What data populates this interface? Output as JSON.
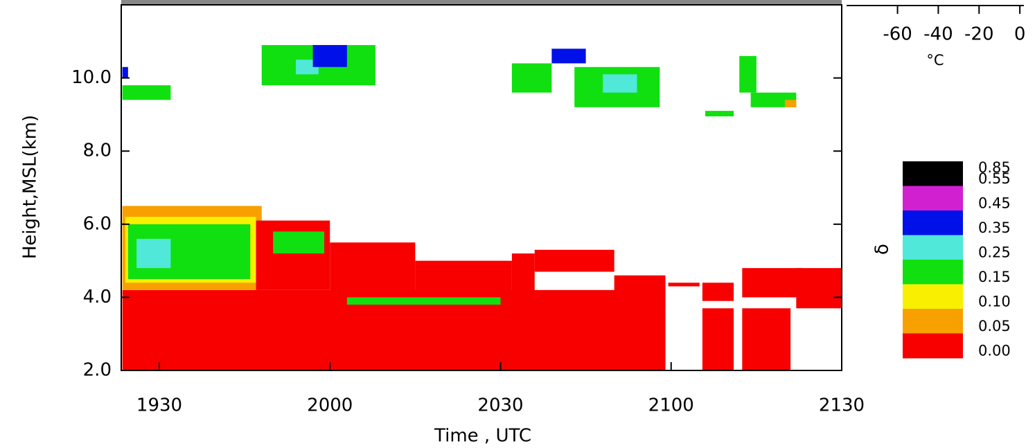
{
  "chart_data": {
    "type": "heatmap",
    "xlabel": "Time , UTC",
    "ylabel": "Height,MSL(km)",
    "xlim": [
      1163.3,
      1290
    ],
    "xticks": [
      {
        "value": 1170,
        "label": "1930"
      },
      {
        "value": 1200,
        "label": "2000"
      },
      {
        "value": 1230,
        "label": "2030"
      },
      {
        "value": 1260,
        "label": "2100"
      },
      {
        "value": 1290,
        "label": "2130"
      }
    ],
    "ylim": [
      2,
      12
    ],
    "yticks": [
      {
        "value": 2,
        "label": "2.0"
      },
      {
        "value": 4,
        "label": "4.0"
      },
      {
        "value": 6,
        "label": "6.0"
      },
      {
        "value": 8,
        "label": "8.0"
      },
      {
        "value": 10,
        "label": "10.0"
      }
    ],
    "regions": [
      {
        "x": [
          1163.5,
          1259
        ],
        "y": [
          2.0,
          4.2
        ],
        "value": 0.02
      },
      {
        "x": [
          1163.5,
          1188
        ],
        "y": [
          4.2,
          6.5
        ],
        "value": 0.07
      },
      {
        "x": [
          1164,
          1187
        ],
        "y": [
          4.4,
          6.2
        ],
        "value": 0.12
      },
      {
        "x": [
          1164.5,
          1186
        ],
        "y": [
          4.5,
          6.0
        ],
        "value": 0.2
      },
      {
        "x": [
          1166,
          1172
        ],
        "y": [
          4.8,
          5.6
        ],
        "value": 0.28
      },
      {
        "x": [
          1187,
          1200
        ],
        "y": [
          4.2,
          6.1
        ],
        "value": 0.02
      },
      {
        "x": [
          1190,
          1199
        ],
        "y": [
          5.2,
          5.8
        ],
        "value": 0.2
      },
      {
        "x": [
          1200,
          1215
        ],
        "y": [
          4.0,
          5.5
        ],
        "value": 0.02
      },
      {
        "x": [
          1215,
          1232
        ],
        "y": [
          3.9,
          5.0
        ],
        "value": 0.02
      },
      {
        "x": [
          1232,
          1236
        ],
        "y": [
          3.7,
          5.2
        ],
        "value": 0.02
      },
      {
        "x": [
          1236,
          1250
        ],
        "y": [
          4.7,
          5.3
        ],
        "value": 0.02
      },
      {
        "x": [
          1250,
          1259
        ],
        "y": [
          3.7,
          4.6
        ],
        "value": 0.02
      },
      {
        "x": [
          1203,
          1230
        ],
        "y": [
          3.8,
          4.0
        ],
        "value": 0.18
      },
      {
        "x": [
          1259.5,
          1265
        ],
        "y": [
          4.3,
          4.4
        ],
        "value": 0.02
      },
      {
        "x": [
          1265.5,
          1271
        ],
        "y": [
          2.0,
          3.7
        ],
        "value": 0.02
      },
      {
        "x": [
          1265.5,
          1271
        ],
        "y": [
          3.9,
          4.4
        ],
        "value": 0.02
      },
      {
        "x": [
          1272.5,
          1281
        ],
        "y": [
          2.0,
          3.7
        ],
        "value": 0.02
      },
      {
        "x": [
          1272.5,
          1283
        ],
        "y": [
          4.0,
          4.8
        ],
        "value": 0.02
      },
      {
        "x": [
          1282,
          1290
        ],
        "y": [
          3.7,
          4.8
        ],
        "value": 0.02
      },
      {
        "x": [
          1163.5,
          1172
        ],
        "y": [
          9.4,
          9.8
        ],
        "value": 0.2
      },
      {
        "x": [
          1163.5,
          1164.5
        ],
        "y": [
          10.0,
          10.3
        ],
        "value": 0.38
      },
      {
        "x": [
          1188,
          1208
        ],
        "y": [
          9.8,
          10.9
        ],
        "value": 0.2
      },
      {
        "x": [
          1194,
          1198
        ],
        "y": [
          10.1,
          10.5
        ],
        "value": 0.28
      },
      {
        "x": [
          1197,
          1203
        ],
        "y": [
          10.3,
          10.9
        ],
        "value": 0.38
      },
      {
        "x": [
          1232,
          1239
        ],
        "y": [
          9.6,
          10.4
        ],
        "value": 0.18
      },
      {
        "x": [
          1239,
          1245
        ],
        "y": [
          10.4,
          10.8
        ],
        "value": 0.38
      },
      {
        "x": [
          1243,
          1258
        ],
        "y": [
          9.2,
          10.3
        ],
        "value": 0.2
      },
      {
        "x": [
          1248,
          1254
        ],
        "y": [
          9.6,
          10.1
        ],
        "value": 0.3
      },
      {
        "x": [
          1266,
          1271
        ],
        "y": [
          8.95,
          9.1
        ],
        "value": 0.2
      },
      {
        "x": [
          1272,
          1275
        ],
        "y": [
          9.6,
          10.6
        ],
        "value": 0.2
      },
      {
        "x": [
          1274,
          1282
        ],
        "y": [
          9.2,
          9.6
        ],
        "value": 0.2
      },
      {
        "x": [
          1280,
          1282
        ],
        "y": [
          9.2,
          9.4
        ],
        "value": 0.06
      }
    ],
    "colorbar": {
      "label": "δ",
      "levels": [
        0.85,
        0.55,
        0.45,
        0.35,
        0.25,
        0.15,
        {
          "value": 0.1,
          "label": "0.10"
        },
        0.05,
        {
          "value": 0,
          "label": "0.00"
        }
      ],
      "colors": [
        "#000000",
        "#d020d0",
        "#0010e8",
        "#50e8d8",
        "#10e010",
        "#f8f000",
        "#f8a000",
        "#f80000"
      ]
    },
    "temperature_axis": {
      "label": "°C",
      "lim": [
        -85,
        2
      ],
      "ticks": [
        -60,
        -40,
        -20,
        0
      ]
    }
  }
}
